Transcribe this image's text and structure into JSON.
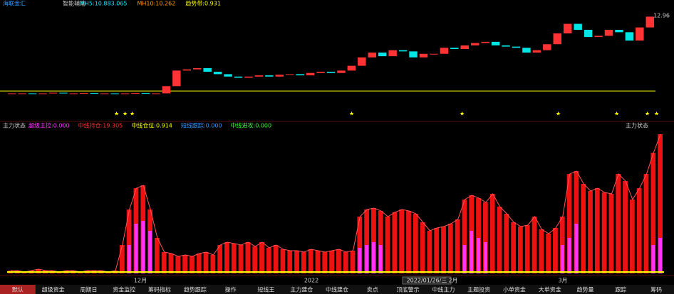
{
  "header": {
    "name": "海联金汇",
    "indicator": "智能辅助",
    "items": [
      {
        "text": "MH5:10.883.065",
        "color": "#00e5ff"
      },
      {
        "text": "MH10:10.262",
        "color": "#ff9900"
      },
      {
        "text": "趋势带:0.931",
        "color": "#ffff00"
      }
    ],
    "price_label": "12.96"
  },
  "candles": {
    "ylim": [
      5.5,
      13.5
    ],
    "level": 6.8,
    "open": [
      6.55,
      6.6,
      6.6,
      6.55,
      6.6,
      6.65,
      6.6,
      6.6,
      6.62,
      6.6,
      6.6,
      6.58,
      6.6,
      6.62,
      6.6,
      6.6,
      7.2,
      8.5,
      8.6,
      8.7,
      8.4,
      8.2,
      8.0,
      7.9,
      8.0,
      8.1,
      8.0,
      8.15,
      8.2,
      8.1,
      8.3,
      8.4,
      8.3,
      8.5,
      8.9,
      9.6,
      10.0,
      9.7,
      10.2,
      10.1,
      9.6,
      9.9,
      9.9,
      10.4,
      10.3,
      10.6,
      10.8,
      10.9,
      10.6,
      10.5,
      10.4,
      10.0,
      10.2,
      10.7,
      11.6,
      12.4,
      11.9,
      11.3,
      11.4,
      11.9,
      11.7,
      11.0,
      12.1
    ],
    "close": [
      6.6,
      6.6,
      6.55,
      6.6,
      6.65,
      6.6,
      6.6,
      6.62,
      6.6,
      6.6,
      6.58,
      6.6,
      6.62,
      6.6,
      6.6,
      7.2,
      8.5,
      8.6,
      8.7,
      8.4,
      8.2,
      8.0,
      7.9,
      8.0,
      8.1,
      8.0,
      8.15,
      8.2,
      8.1,
      8.3,
      8.4,
      8.3,
      8.5,
      8.9,
      9.6,
      10.0,
      9.7,
      10.2,
      10.1,
      9.6,
      9.9,
      9.9,
      10.4,
      10.3,
      10.6,
      10.8,
      10.9,
      10.6,
      10.5,
      10.4,
      10.0,
      10.2,
      10.7,
      11.6,
      12.4,
      11.9,
      11.3,
      11.4,
      11.9,
      11.7,
      11.0,
      12.1,
      13.0
    ]
  },
  "lower": {
    "title": "主力状态",
    "title_right": "主力状态",
    "ylim": [
      0,
      100
    ],
    "legend": [
      {
        "text": "超级主控:0.000",
        "color": "#ff33ff"
      },
      {
        "text": "中线持仓:19.305",
        "color": "#ff3333"
      },
      {
        "text": "中线仓位:0.914",
        "color": "#ffff00"
      },
      {
        "text": "短线跟踪:0.000",
        "color": "#3399ff"
      },
      {
        "text": "中线进攻:0.000",
        "color": "#33ff33"
      }
    ],
    "red": [
      2,
      2,
      1,
      2,
      3,
      2,
      2,
      1,
      2,
      2,
      1,
      2,
      2,
      2,
      1,
      2,
      20,
      45,
      60,
      62,
      45,
      25,
      15,
      14,
      12,
      13,
      12,
      14,
      15,
      13,
      20,
      22,
      21,
      20,
      22,
      19,
      22,
      18,
      20,
      17,
      16,
      16,
      15,
      17,
      16,
      15,
      16,
      17,
      15,
      16,
      40,
      45,
      46,
      44,
      40,
      43,
      45,
      44,
      42,
      36,
      30,
      32,
      33,
      35,
      38,
      52,
      55,
      53,
      50,
      56,
      47,
      42,
      36,
      33,
      34,
      40,
      31,
      28,
      32,
      40,
      70,
      72,
      63,
      58,
      60,
      57,
      56,
      70,
      65,
      52,
      60,
      70,
      85,
      98
    ],
    "magenta": [
      0,
      0,
      0,
      0,
      0,
      0,
      0,
      0,
      0,
      0,
      0,
      0,
      0,
      0,
      0,
      0,
      0,
      20,
      35,
      37,
      30,
      0,
      0,
      0,
      0,
      0,
      0,
      0,
      0,
      0,
      0,
      0,
      0,
      0,
      0,
      0,
      0,
      0,
      0,
      0,
      0,
      0,
      0,
      0,
      0,
      0,
      0,
      0,
      0,
      0,
      18,
      20,
      22,
      20,
      0,
      0,
      0,
      0,
      0,
      0,
      0,
      0,
      0,
      0,
      0,
      20,
      30,
      25,
      22,
      0,
      0,
      0,
      0,
      0,
      0,
      0,
      0,
      0,
      0,
      20,
      25,
      35,
      0,
      0,
      0,
      0,
      0,
      0,
      0,
      0,
      0,
      0,
      20,
      25
    ]
  },
  "axis": {
    "labels": [
      {
        "text": "12月",
        "x": 197
      },
      {
        "text": "2022",
        "x": 437
      },
      {
        "text": "2月",
        "x": 636
      },
      {
        "text": "3月",
        "x": 790
      }
    ],
    "cursor_date": "2022/01/26/三"
  },
  "tabs": [
    "默认",
    "超级资金",
    "周期日",
    "资金监控",
    "筹码指标",
    "趋势跟踪",
    "操作",
    "短线王",
    "主力建仓",
    "中线建仓",
    "卖点",
    "顶底警示",
    "中线主力",
    "主题投资",
    "小单资金",
    "大单资金",
    "趋势量",
    "跟踪",
    "筹码"
  ]
}
